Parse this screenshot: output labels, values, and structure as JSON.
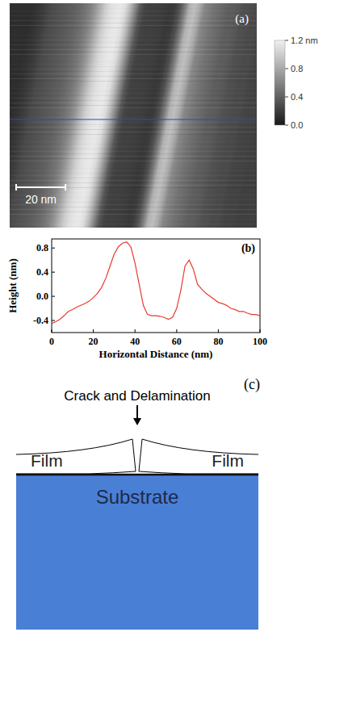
{
  "panel_a": {
    "panel_label": "(a)",
    "scale_bar": {
      "length": 20,
      "label": "20 nm"
    },
    "colorbar": {
      "range": [
        0,
        1.2
      ],
      "ticks": [
        {
          "value": 1.2,
          "label": "1.2 nm"
        },
        0.8,
        0.4,
        {
          "value": 0,
          "label": "0.0"
        }
      ]
    }
  },
  "chart_data": {
    "type": "line",
    "panel_label": "(b)",
    "x_label": "Horizontal Distance (nm)",
    "y_label": "Height (nm)",
    "color": "#e8392f",
    "x": [
      0,
      2,
      4,
      6,
      8,
      10,
      12,
      14,
      16,
      18,
      20,
      22,
      24,
      26,
      28,
      30,
      32,
      34,
      36,
      38,
      40,
      42,
      44,
      46,
      48,
      50,
      52,
      54,
      56,
      58,
      60,
      62,
      64,
      66,
      68,
      70,
      72,
      74,
      76,
      78,
      80,
      82,
      84,
      86,
      88,
      90,
      92,
      94,
      96,
      98,
      100
    ],
    "values": [
      -0.45,
      -0.42,
      -0.38,
      -0.32,
      -0.25,
      -0.22,
      -0.18,
      -0.15,
      -0.12,
      -0.08,
      -0.02,
      0.05,
      0.15,
      0.3,
      0.5,
      0.7,
      0.82,
      0.88,
      0.9,
      0.82,
      0.55,
      0.2,
      -0.15,
      -0.3,
      -0.32,
      -0.32,
      -0.33,
      -0.35,
      -0.38,
      -0.35,
      -0.2,
      0.1,
      0.5,
      0.6,
      0.45,
      0.2,
      0.12,
      0.05,
      0.0,
      -0.05,
      -0.1,
      -0.12,
      -0.15,
      -0.2,
      -0.22,
      -0.25,
      -0.25,
      -0.28,
      -0.3,
      -0.3,
      -0.32
    ],
    "xlim": [
      0,
      100
    ],
    "ylim": [
      -0.6,
      0.95
    ],
    "xticks": [
      0,
      20,
      40,
      60,
      80,
      100
    ],
    "yticks": [
      0.8,
      0.4,
      {
        "value": 0,
        "label": "0.0"
      },
      -0.4
    ]
  },
  "panel_c": {
    "panel_label": "(c)",
    "title": "Crack and Delamination",
    "film_labels": [
      "Film",
      "Film"
    ],
    "substrate_label": "Substrate"
  }
}
